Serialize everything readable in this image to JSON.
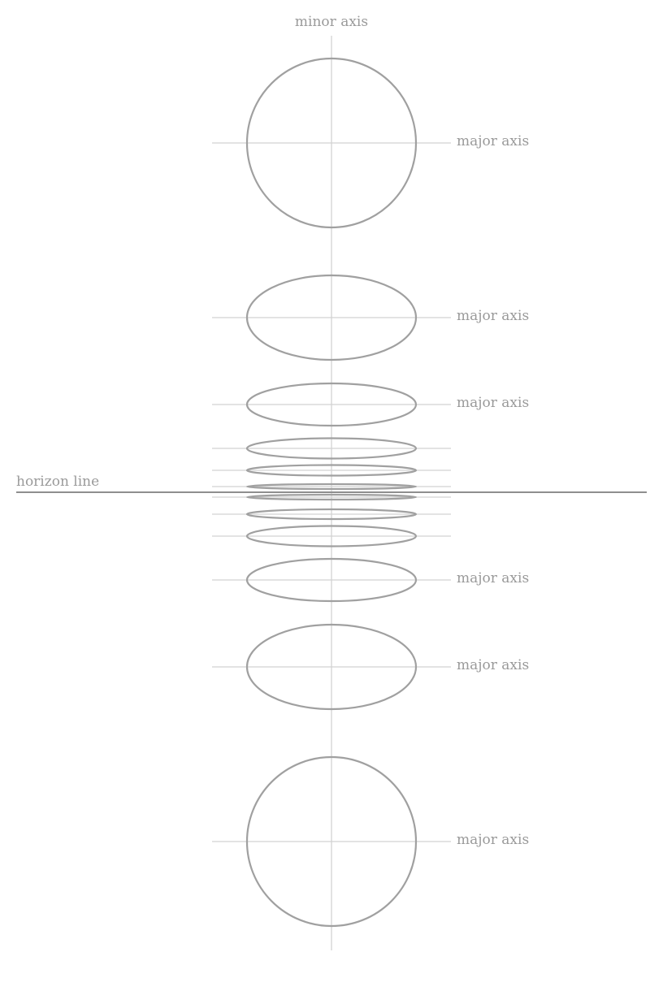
{
  "labels": {
    "minor_axis": "minor axis",
    "major_axis": "major axis",
    "horizon_line": "horizon line"
  },
  "ellipses": [
    {
      "id": "ellipse-1",
      "labeled": true
    },
    {
      "id": "ellipse-2",
      "labeled": true
    },
    {
      "id": "ellipse-3",
      "labeled": true
    },
    {
      "id": "ellipse-4",
      "labeled": false
    },
    {
      "id": "ellipse-5",
      "labeled": false
    },
    {
      "id": "ellipse-6",
      "labeled": false
    },
    {
      "id": "ellipse-7",
      "labeled": false
    },
    {
      "id": "ellipse-8",
      "labeled": false
    },
    {
      "id": "ellipse-9",
      "labeled": false
    },
    {
      "id": "ellipse-10",
      "labeled": true
    },
    {
      "id": "ellipse-11",
      "labeled": true
    },
    {
      "id": "ellipse-12",
      "labeled": true
    }
  ],
  "colors": {
    "ellipse_stroke": "#a0a0a0",
    "axis_stroke": "#d2d2d2",
    "horizon_stroke": "#8e8e8e",
    "label_text": "#9a9a9a"
  }
}
